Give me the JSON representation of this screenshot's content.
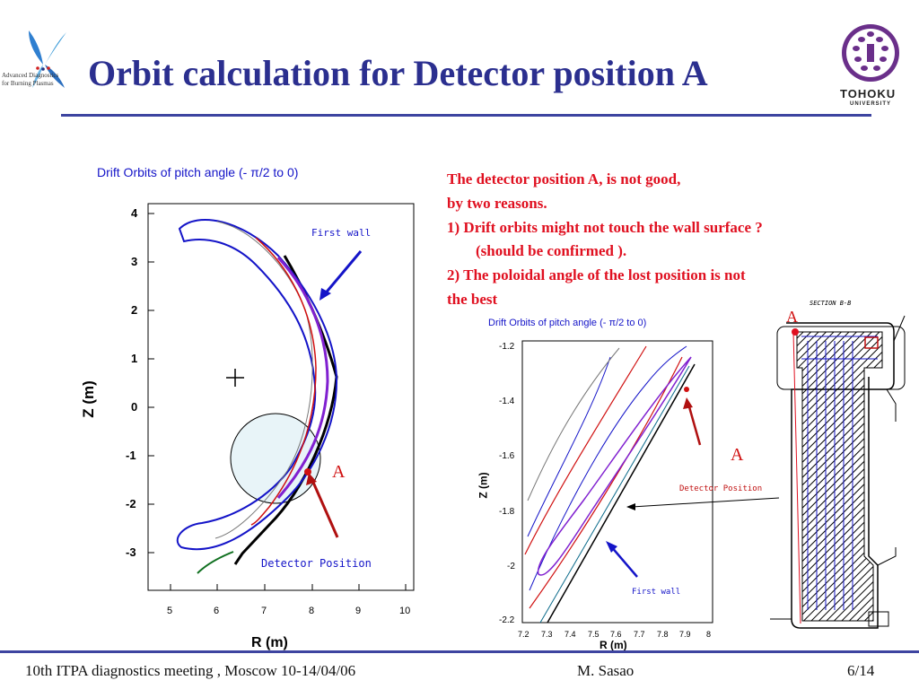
{
  "header": {
    "logo_text_line1": "Advanced Diagnostics",
    "logo_text_line2": "for Burning Plasmas",
    "title": "Orbit calculation for Detector position A",
    "university_line1": "TOHOKU",
    "university_line2": "UNIVERSITY"
  },
  "main_plot": {
    "title": "Drift Orbits of pitch angle (-    π/2 to 0)",
    "xlabel": "R (m)",
    "ylabel": "Z (m)",
    "xticks": [
      "5",
      "6",
      "7",
      "8",
      "9",
      "10"
    ],
    "yticks": [
      "4",
      "3",
      "2",
      "1",
      "0",
      "-1",
      "-2",
      "-3"
    ],
    "first_wall_label": "First wall",
    "detector_label": "Detector Position",
    "point_label": "A"
  },
  "notes": {
    "line1": "The detector position A, is  not good,",
    "line2": "by two reasons.",
    "line3": "1)  Drift orbits might not touch the wall surface ?",
    "line4": "(should be confirmed ).",
    "line5": "2)   The poloidal angle of the lost position is not",
    "line6": "the best"
  },
  "zoom_plot": {
    "title": "Drift Orbits of pitch angle (-    π/2 to 0)",
    "xlabel": "R (m)",
    "ylabel": "Z (m)",
    "xticks": [
      "7.2",
      "7.3",
      "7.4",
      "7.5",
      "7.6",
      "7.7",
      "7.8",
      "7.9",
      "8"
    ],
    "yticks": [
      "-1.2",
      "-1.4",
      "-1.6",
      "-1.8",
      "-2",
      "-2.2"
    ],
    "first_wall_label": "First wall",
    "detector_label": "Detector Position",
    "point_label": "A"
  },
  "drawing": {
    "section_label": "SECTION B-B",
    "point_label_top": "A"
  },
  "footer": {
    "meeting": "10th  ITPA diagnostics meeting , Moscow 10-14/04/06",
    "author": "M. Sasao",
    "page": "6/14"
  },
  "colors": {
    "title": "#2b2f8f",
    "rule": "#3d44a0",
    "note_red": "#e01020",
    "plot_blue": "#1414c8"
  }
}
